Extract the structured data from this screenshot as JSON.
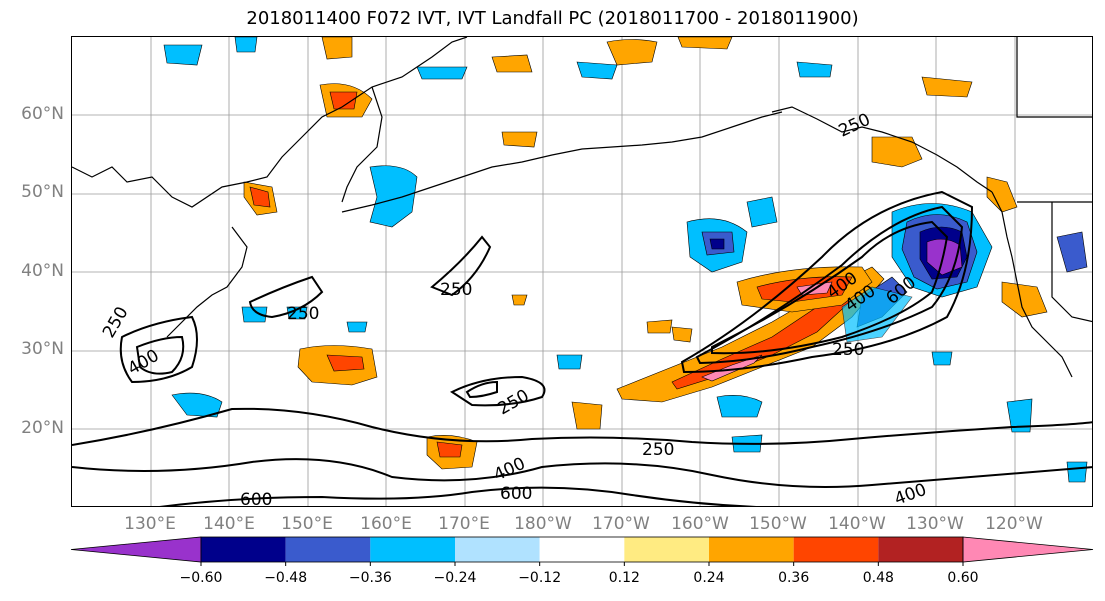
{
  "title": "2018011400 F072 IVT, IVT Landfall PC (2018011700 - 2018011900)",
  "latitude_labels": [
    "60°N",
    "50°N",
    "40°N",
    "30°N",
    "20°N"
  ],
  "longitude_labels": [
    "130°E",
    "140°E",
    "150°E",
    "160°E",
    "170°E",
    "180°W",
    "170°W",
    "160°W",
    "150°W",
    "140°W",
    "130°W",
    "120°W"
  ],
  "contour_labels": [
    "250",
    "250",
    "250",
    "250",
    "250",
    "250",
    "250",
    "400",
    "400",
    "400",
    "400",
    "400",
    "600",
    "600",
    "600"
  ],
  "colorbar": {
    "colors": [
      "#9932cc",
      "#00008b",
      "#3a5bcd",
      "#00bfff",
      "#b0e2ff",
      "#ffffff",
      "#ffeb82",
      "#ffa500",
      "#ff4500",
      "#b22222",
      "#ff88b4"
    ],
    "ticks": [
      "−0.60",
      "−0.48",
      "−0.36",
      "−0.24",
      "−0.12",
      "0.12",
      "0.24",
      "0.36",
      "0.48",
      "0.60"
    ]
  }
}
